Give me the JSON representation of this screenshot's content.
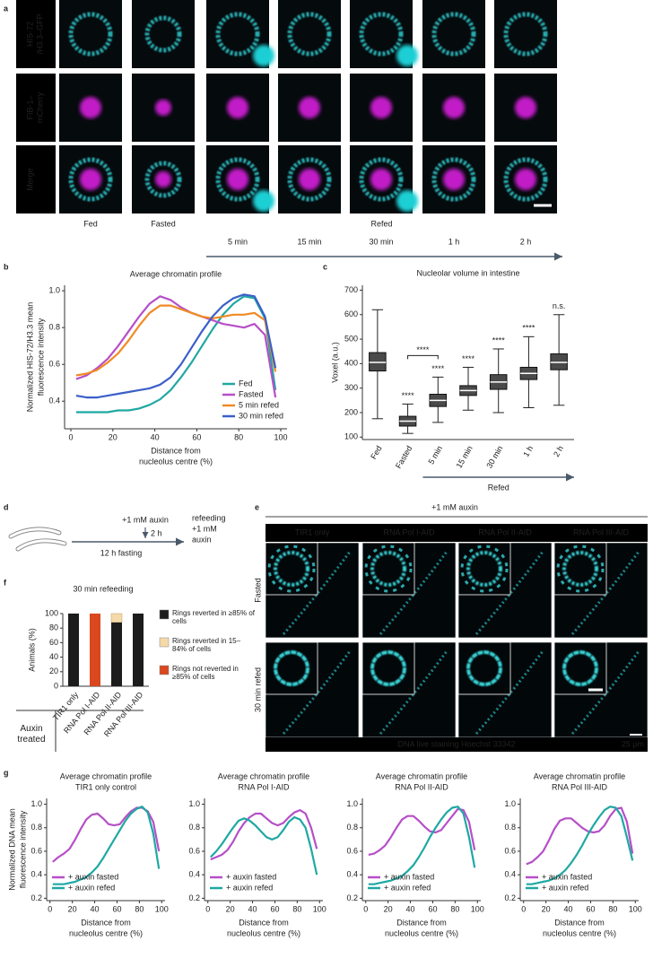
{
  "panel_labels": [
    "a",
    "b",
    "c",
    "d",
    "e",
    "f",
    "g"
  ],
  "panel_a": {
    "row_labels": [
      [
        "HIS-72",
        "/H3.3–GFP"
      ],
      [
        "FIB-1–",
        "mCherry"
      ],
      [
        "Merge"
      ]
    ],
    "row_colors": [
      "#3ccfd0",
      "#c43ccc",
      "#ffffff"
    ],
    "column_labels": [
      "Fed",
      "Fasted"
    ],
    "refed_label": "Refed",
    "time_labels": [
      "5 min",
      "15 min",
      "30 min",
      "1 h",
      "2 h"
    ]
  },
  "panel_d": {
    "auxin": "+1 mM auxin",
    "duration": "2 h",
    "fasting": "12 h fasting",
    "refeeding": [
      "refeeding",
      "+1 mM",
      "auxin"
    ]
  },
  "panel_e": {
    "treatment": "+1 mM auxin",
    "columns": [
      {
        "label": "TIR1 only",
        "color": "#ffffff"
      },
      {
        "label": "RNA Pol I-AID",
        "color": "#e2477d"
      },
      {
        "label": "RNA Pol II-AID",
        "color": "#3fbf80"
      },
      {
        "label": "RNA Pol III-AID",
        "color": "#d8a21c"
      }
    ],
    "rows": [
      "Fasted",
      "30 min refed"
    ],
    "stain": "DNA live staining Hoechst 33342",
    "scale_bar": "25 μm"
  },
  "chart_data": [
    {
      "type": "line",
      "title": "Average chromatin profile",
      "x_label": [
        "Distance from",
        "nucleolus centre (%)"
      ],
      "y_label": [
        "Normalized HIS-72/H3.3 mean",
        "fluorescence intensity"
      ],
      "x": [
        2.5,
        7.5,
        12.5,
        17.5,
        22.5,
        27.5,
        32.5,
        37.5,
        42.5,
        47.5,
        52.5,
        57.5,
        62.5,
        67.5,
        72.5,
        77.5,
        82.5,
        87.5,
        92.5,
        97.5
      ],
      "series": [
        {
          "name": "Fed",
          "color": "#1fa8a3",
          "values": [
            0.34,
            0.34,
            0.34,
            0.34,
            0.35,
            0.35,
            0.36,
            0.38,
            0.41,
            0.46,
            0.53,
            0.61,
            0.7,
            0.79,
            0.87,
            0.93,
            0.97,
            0.96,
            0.85,
            0.46
          ]
        },
        {
          "name": "Fasted",
          "color": "#b64fc8",
          "values": [
            0.52,
            0.54,
            0.58,
            0.63,
            0.7,
            0.78,
            0.86,
            0.93,
            0.97,
            0.95,
            0.91,
            0.88,
            0.86,
            0.84,
            0.82,
            0.81,
            0.8,
            0.82,
            0.76,
            0.42
          ]
        },
        {
          "name": "5 min refed",
          "color": "#f08a24",
          "values": [
            0.54,
            0.55,
            0.57,
            0.61,
            0.66,
            0.73,
            0.81,
            0.88,
            0.92,
            0.92,
            0.9,
            0.88,
            0.86,
            0.85,
            0.86,
            0.87,
            0.87,
            0.88,
            0.84,
            0.56
          ]
        },
        {
          "name": "30 min refed",
          "color": "#3b5fc9",
          "values": [
            0.43,
            0.42,
            0.42,
            0.43,
            0.44,
            0.45,
            0.46,
            0.47,
            0.49,
            0.53,
            0.6,
            0.69,
            0.78,
            0.86,
            0.92,
            0.96,
            0.98,
            0.97,
            0.86,
            0.58
          ]
        }
      ],
      "xlim": [
        -3,
        103
      ],
      "xticks": [
        0,
        20,
        40,
        60,
        80,
        100
      ],
      "ylim": [
        0.25,
        1.03
      ],
      "yticks": [
        0.4,
        0.6,
        0.8,
        {
          "value": 1,
          "label": "1.0"
        }
      ],
      "legend": "lower right"
    },
    {
      "type": "box",
      "title": "Nucleolar volume in intestine",
      "y_label": "Voxel (a.u.)",
      "categories": [
        "Fed",
        "Fasted",
        "5 min",
        "15 min",
        "30 min",
        "1 h",
        "2 h"
      ],
      "stats": {
        "whislo": [
          175,
          115,
          160,
          210,
          200,
          220,
          230
        ],
        "q1": [
          370,
          145,
          225,
          270,
          295,
          335,
          375
        ],
        "median": [
          405,
          165,
          250,
          290,
          325,
          360,
          405
        ],
        "q3": [
          445,
          185,
          275,
          310,
          355,
          385,
          440
        ],
        "whishi": [
          620,
          235,
          345,
          385,
          460,
          510,
          600
        ]
      },
      "annotations": [
        {
          "text": "****",
          "x": "Fasted"
        },
        {
          "text": "****",
          "x": "5 min"
        },
        {
          "text": "****",
          "x": "15 min"
        },
        {
          "text": "****",
          "x": "30 min"
        },
        {
          "text": "****",
          "x": "1 h"
        },
        {
          "text": "n.s.",
          "x": "2 h"
        }
      ],
      "bracket": {
        "text": "****",
        "from": "Fasted",
        "to": "5 min"
      },
      "group_label": {
        "text": "Refed",
        "from": "5 min",
        "to": "2 h"
      },
      "ylim": [
        90,
        720
      ],
      "yticks": [
        100,
        200,
        300,
        400,
        500,
        600,
        700
      ]
    },
    {
      "type": "stacked_bar",
      "title": "30 min refeeding",
      "y_label": "Animals (%)",
      "row_label": "Auxin treated",
      "categories": [
        "TIR1 only",
        "RNA Pol I-AID",
        "RNA Pol II-AID",
        "RNA Pol III-AID"
      ],
      "series": [
        {
          "name": "Rings reverted in ≥85% of cells",
          "color": "#1c1c1c",
          "values": [
            100,
            0,
            88,
            100
          ]
        },
        {
          "name": "Rings reverted in 15–84% of cells",
          "color": "#f6d9a8",
          "values": [
            0,
            0,
            12,
            0
          ]
        },
        {
          "name": "Rings not reverted in ≥85% of cells",
          "color": "#d9481f",
          "values": [
            0,
            100,
            0,
            0
          ]
        }
      ],
      "ylim": [
        0,
        100
      ],
      "yticks": [
        0,
        20,
        40,
        60,
        80,
        100
      ]
    },
    {
      "type": "line",
      "title": [
        "Average chromatin profile",
        "TIR1 only control"
      ],
      "x_label": [
        "Distance from",
        "nucleolus centre (%)"
      ],
      "y_label": [
        "Normalized DNA mean",
        "fluorescence intensity"
      ],
      "x": [
        2.5,
        7.5,
        12.5,
        17.5,
        22.5,
        27.5,
        32.5,
        37.5,
        42.5,
        47.5,
        52.5,
        57.5,
        62.5,
        67.5,
        72.5,
        77.5,
        82.5,
        87.5,
        92.5,
        97.5
      ],
      "series": [
        {
          "name": "+ auxin fasted",
          "color": "#b64fc8",
          "values": [
            0.51,
            0.55,
            0.58,
            0.62,
            0.7,
            0.79,
            0.87,
            0.91,
            0.92,
            0.88,
            0.83,
            0.82,
            0.83,
            0.89,
            0.94,
            0.97,
            0.97,
            0.94,
            0.85,
            0.6
          ]
        },
        {
          "name": "+ auxin refed",
          "color": "#1fa8a3",
          "values": [
            0.32,
            0.32,
            0.32,
            0.33,
            0.34,
            0.36,
            0.38,
            0.42,
            0.47,
            0.54,
            0.62,
            0.7,
            0.78,
            0.86,
            0.92,
            0.96,
            0.98,
            0.93,
            0.75,
            0.45
          ]
        }
      ],
      "xlim": [
        -3,
        103
      ],
      "xticks": [
        0,
        20,
        40,
        60,
        80,
        100
      ],
      "ylim": [
        0.18,
        1.05
      ],
      "yticks": [
        0.2,
        0.4,
        0.6,
        0.8,
        {
          "value": 1,
          "label": "1.0"
        }
      ],
      "legend": "lower left"
    },
    {
      "type": "line",
      "title": [
        "Average chromatin profile",
        "RNA Pol I-AID"
      ],
      "x_label": [
        "Distance from",
        "nucleolus centre (%)"
      ],
      "x": [
        2.5,
        7.5,
        12.5,
        17.5,
        22.5,
        27.5,
        32.5,
        37.5,
        42.5,
        47.5,
        52.5,
        57.5,
        62.5,
        67.5,
        72.5,
        77.5,
        82.5,
        87.5,
        92.5,
        97.5
      ],
      "series": [
        {
          "name": "+ auxin fasted",
          "color": "#b64fc8",
          "values": [
            0.53,
            0.55,
            0.57,
            0.61,
            0.68,
            0.77,
            0.84,
            0.89,
            0.92,
            0.92,
            0.88,
            0.84,
            0.82,
            0.84,
            0.89,
            0.93,
            0.95,
            0.92,
            0.8,
            0.62
          ]
        },
        {
          "name": "+ auxin refed",
          "color": "#1fa8a3",
          "values": [
            0.55,
            0.6,
            0.66,
            0.73,
            0.8,
            0.86,
            0.88,
            0.86,
            0.82,
            0.77,
            0.72,
            0.7,
            0.72,
            0.78,
            0.85,
            0.89,
            0.87,
            0.8,
            0.62,
            0.4
          ]
        }
      ],
      "xlim": [
        -3,
        103
      ],
      "xticks": [
        0,
        20,
        40,
        60,
        80,
        100
      ],
      "ylim": [
        0.18,
        1.05
      ],
      "yticks": [
        0.2,
        0.4,
        0.6,
        0.8,
        {
          "value": 1,
          "label": "1.0"
        }
      ],
      "legend": "lower left"
    },
    {
      "type": "line",
      "title": [
        "Average chromatin profile",
        "RNA Pol II-AID"
      ],
      "x_label": [
        "Distance from",
        "nucleolus centre (%)"
      ],
      "x": [
        2.5,
        7.5,
        12.5,
        17.5,
        22.5,
        27.5,
        32.5,
        37.5,
        42.5,
        47.5,
        52.5,
        57.5,
        62.5,
        67.5,
        72.5,
        77.5,
        82.5,
        87.5,
        92.5,
        97.5
      ],
      "series": [
        {
          "name": "+ auxin fasted",
          "color": "#b64fc8",
          "values": [
            0.57,
            0.58,
            0.61,
            0.65,
            0.72,
            0.8,
            0.87,
            0.9,
            0.9,
            0.86,
            0.81,
            0.77,
            0.76,
            0.78,
            0.84,
            0.9,
            0.96,
            0.95,
            0.85,
            0.61
          ]
        },
        {
          "name": "+ auxin refed",
          "color": "#1fa8a3",
          "values": [
            0.32,
            0.32,
            0.33,
            0.34,
            0.35,
            0.37,
            0.39,
            0.43,
            0.48,
            0.55,
            0.63,
            0.72,
            0.8,
            0.87,
            0.93,
            0.97,
            0.98,
            0.92,
            0.72,
            0.46
          ]
        }
      ],
      "xlim": [
        -3,
        103
      ],
      "xticks": [
        0,
        20,
        40,
        60,
        80,
        100
      ],
      "ylim": [
        0.18,
        1.05
      ],
      "yticks": [
        0.2,
        0.4,
        0.6,
        0.8,
        {
          "value": 1,
          "label": "1.0"
        }
      ],
      "legend": "lower left"
    },
    {
      "type": "line",
      "title": [
        "Average chromatin profile",
        "RNA Pol III-AID"
      ],
      "x_label": [
        "Distance from",
        "nucleolus centre (%)"
      ],
      "x": [
        2.5,
        7.5,
        12.5,
        17.5,
        22.5,
        27.5,
        32.5,
        37.5,
        42.5,
        47.5,
        52.5,
        57.5,
        62.5,
        67.5,
        72.5,
        77.5,
        82.5,
        87.5,
        92.5,
        97.5
      ],
      "series": [
        {
          "name": "+ auxin fasted",
          "color": "#b64fc8",
          "values": [
            0.49,
            0.51,
            0.55,
            0.6,
            0.69,
            0.79,
            0.86,
            0.88,
            0.88,
            0.84,
            0.8,
            0.77,
            0.76,
            0.77,
            0.82,
            0.9,
            0.96,
            0.97,
            0.85,
            0.58
          ]
        },
        {
          "name": "+ auxin refed",
          "color": "#1fa8a3",
          "values": [
            0.32,
            0.32,
            0.33,
            0.34,
            0.35,
            0.37,
            0.4,
            0.44,
            0.5,
            0.57,
            0.65,
            0.74,
            0.82,
            0.89,
            0.95,
            0.98,
            0.97,
            0.9,
            0.72,
            0.52
          ]
        }
      ],
      "xlim": [
        -3,
        103
      ],
      "xticks": [
        0,
        20,
        40,
        60,
        80,
        100
      ],
      "ylim": [
        0.18,
        1.05
      ],
      "yticks": [
        0.2,
        0.4,
        0.6,
        0.8,
        {
          "value": 1,
          "label": "1.0"
        }
      ],
      "legend": "lower left"
    }
  ]
}
